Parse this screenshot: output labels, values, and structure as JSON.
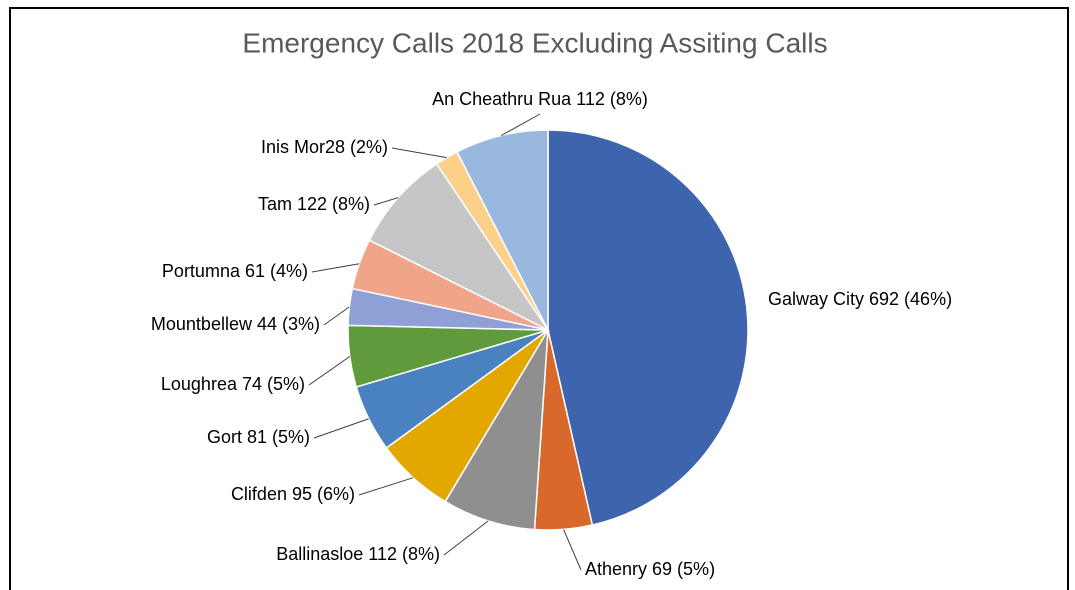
{
  "chart_data": {
    "type": "pie",
    "title": "Emergency Calls 2018 Excluding Assiting Calls",
    "categories": [
      "Galway City",
      "Athenry",
      "Ballinasloe",
      "Clifden",
      "Gort",
      "Loughrea",
      "Mountbellew",
      "Portumna",
      "Tam",
      "Inis Mor",
      "An Cheathru Rua"
    ],
    "values": [
      692,
      69,
      112,
      95,
      81,
      74,
      44,
      61,
      122,
      28,
      112
    ],
    "value_labels": [
      "Galway City 692 (46%)",
      "Athenry 69 (5%)",
      "Ballinasloe  112 (8%)",
      "Clifden 95 (6%)",
      "Gort 81 (5%)",
      "Loughrea 74 (5%)",
      "Mountbellew  44 (3%)",
      "Portumna 61  (4%)",
      "Tam 122 (8%)",
      "Inis Mor28 (2%)",
      "An Cheathru Rua 112 (8%)"
    ],
    "colors": [
      "#3d64ad",
      "#d9692a",
      "#8f8f8f",
      "#e2a800",
      "#4a82bf",
      "#5f9a3c",
      "#8ea0d6",
      "#f0a58b",
      "#c6c6c6",
      "#fdd08a",
      "#98b8e0"
    ]
  }
}
